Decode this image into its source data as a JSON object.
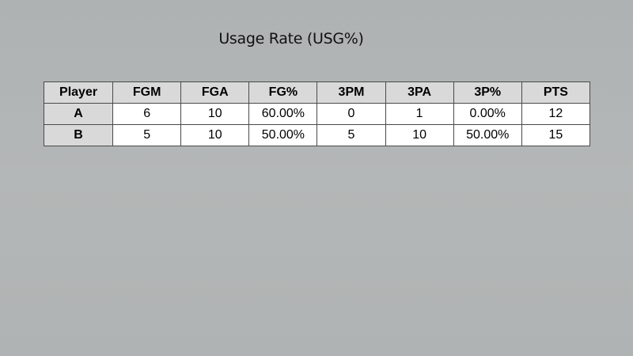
{
  "slide": {
    "title": "Usage Rate (USG%)"
  },
  "table": {
    "columns": [
      "Player",
      "FGM",
      "FGA",
      "FG%",
      "3PM",
      "3PA",
      "3P%",
      "PTS"
    ],
    "rows": [
      [
        "A",
        "6",
        "10",
        "60.00%",
        "0",
        "1",
        "0.00%",
        "12"
      ],
      [
        "B",
        "5",
        "10",
        "50.00%",
        "5",
        "10",
        "50.00%",
        "15"
      ]
    ]
  },
  "colors": {
    "background": "#b2b5b5",
    "header_fill": "#d9d9d9",
    "cell_fill": "#ffffff",
    "border": "#4a4a4a"
  }
}
